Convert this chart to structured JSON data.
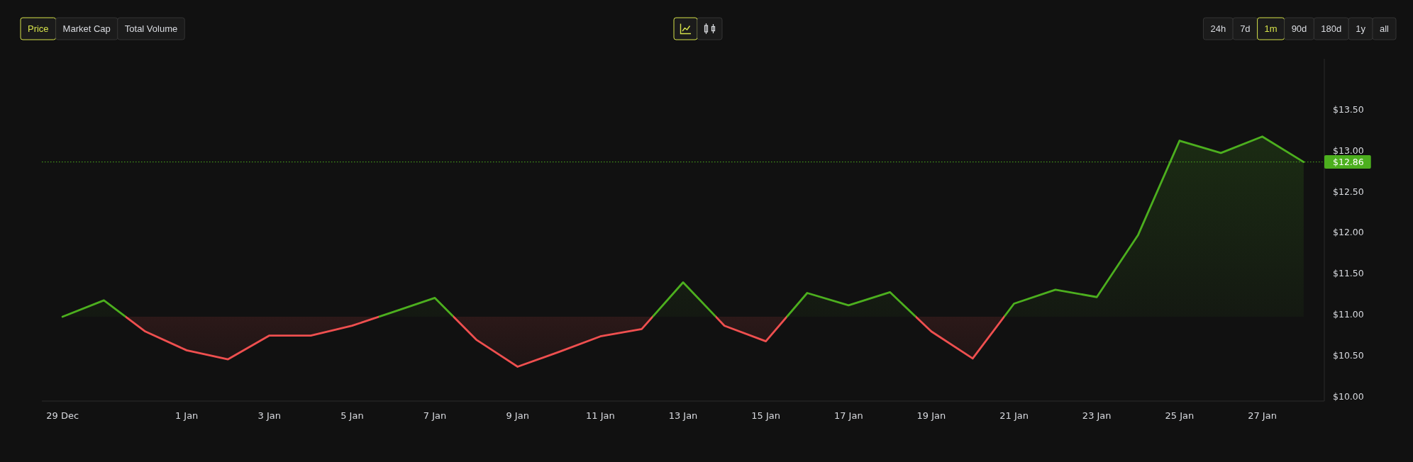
{
  "chart_data": {
    "type": "area",
    "categories": [
      "29 Dec",
      null,
      null,
      "1 Jan",
      null,
      "3 Jan",
      null,
      "5 Jan",
      null,
      "7 Jan",
      null,
      "9 Jan",
      null,
      "11 Jan",
      null,
      "13 Jan",
      null,
      "15 Jan",
      null,
      "17 Jan",
      null,
      "19 Jan",
      null,
      "21 Jan",
      null,
      "23 Jan",
      null,
      "25 Jan",
      null,
      "27 Jan",
      null
    ],
    "values": [
      10.97,
      11.17,
      10.79,
      10.56,
      10.45,
      10.74,
      10.74,
      10.86,
      11.03,
      11.2,
      10.69,
      10.36,
      10.54,
      10.73,
      10.82,
      11.39,
      10.86,
      10.67,
      11.26,
      11.11,
      11.27,
      10.79,
      10.46,
      11.13,
      11.3,
      11.21,
      11.97,
      13.12,
      12.97,
      13.17,
      12.86
    ],
    "colors": [
      "#4caf1e",
      "#4caf1e",
      "#ef4f4f",
      "#ef4f4f",
      "#ef4f4f",
      "#ef4f4f",
      "#ef4f4f",
      "#ef4f4f",
      "#4caf1e",
      "#4caf1e",
      "#ef4f4f",
      "#ef4f4f",
      "#ef4f4f",
      "#ef4f4f",
      "#ef4f4f",
      "#4caf1e",
      "#ef4f4f",
      "#ef4f4f",
      "#4caf1e",
      "#4caf1e",
      "#4caf1e",
      "#ef4f4f",
      "#ef4f4f",
      "#4caf1e",
      "#4caf1e",
      "#4caf1e",
      "#4caf1e",
      "#4caf1e",
      "#4caf1e",
      "#4caf1e",
      "#4caf1e"
    ],
    "ylim": [
      9.94,
      14.12
    ],
    "yticks": [
      {
        "value": 10,
        "label": "$10.00"
      },
      {
        "value": 10.5,
        "label": "$10.50"
      },
      {
        "value": 11,
        "label": "$11.00"
      },
      {
        "value": 11.5,
        "label": "$11.50"
      },
      {
        "value": 12,
        "label": "$12.00"
      },
      {
        "value": 12.5,
        "label": "$12.50"
      },
      {
        "value": 13,
        "label": "$13.00"
      },
      {
        "value": 13.5,
        "label": "$13.50"
      }
    ],
    "ref_lines": [
      {
        "axis": "y",
        "value": 12.86,
        "label": "$12.86",
        "color": "#4caf1e",
        "line_style": "dotted"
      }
    ],
    "annotations": [
      "Price",
      "Market Cap",
      "Total Volume",
      "24h",
      "7d",
      "1m",
      "90d",
      "180d",
      "1y",
      "all"
    ]
  }
}
